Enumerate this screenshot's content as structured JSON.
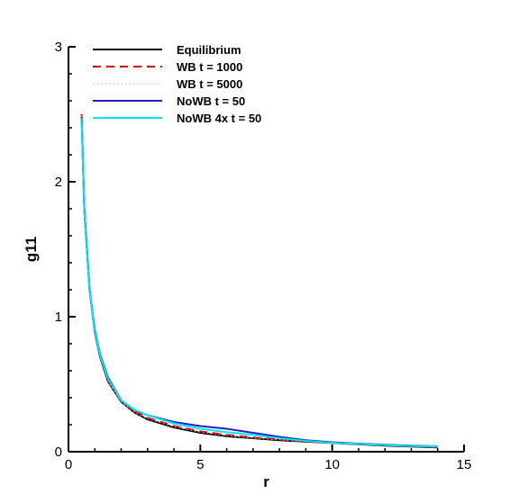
{
  "chart_data": {
    "type": "line",
    "xlabel": "r",
    "ylabel": "g11",
    "xlim": [
      0,
      15
    ],
    "ylim": [
      0,
      3
    ],
    "xticks": [
      0,
      5,
      10,
      15
    ],
    "yticks": [
      0,
      1,
      2,
      3
    ],
    "grid": false,
    "legend_position": "top-left",
    "series": [
      {
        "name": "Equilibrium",
        "color": "#000000",
        "style": "solid",
        "x": [
          0.5,
          0.6,
          0.8,
          1.0,
          1.2,
          1.5,
          2.0,
          2.5,
          3.0,
          4.0,
          5.0,
          6.0,
          7.0,
          8.0,
          9.0,
          10.0,
          11.0,
          12.0,
          13.0,
          14.0
        ],
        "y": [
          2.48,
          1.8,
          1.2,
          0.88,
          0.7,
          0.52,
          0.37,
          0.29,
          0.24,
          0.18,
          0.14,
          0.115,
          0.1,
          0.085,
          0.075,
          0.065,
          0.055,
          0.045,
          0.038,
          0.032
        ]
      },
      {
        "name": "WB t = 1000",
        "color": "#d40000",
        "style": "dashed",
        "x": [
          0.5,
          0.6,
          0.8,
          1.0,
          1.2,
          1.5,
          2.0,
          2.5,
          3.0,
          4.0,
          5.0,
          6.0,
          7.0,
          8.0,
          9.0,
          10.0,
          11.0,
          12.0,
          13.0,
          14.0
        ],
        "y": [
          2.5,
          1.82,
          1.21,
          0.89,
          0.71,
          0.53,
          0.37,
          0.3,
          0.25,
          0.19,
          0.15,
          0.125,
          0.105,
          0.09,
          0.078,
          0.066,
          0.056,
          0.047,
          0.04,
          0.034
        ]
      },
      {
        "name": "WB t = 5000",
        "color": "#f0a0a0",
        "style": "dotted",
        "x": [
          0.5,
          0.6,
          0.8,
          1.0,
          1.2,
          1.5,
          2.0,
          2.5,
          3.0,
          4.0,
          5.0,
          6.0,
          7.0,
          8.0,
          9.0,
          10.0,
          11.0,
          12.0,
          13.0,
          14.0
        ],
        "y": [
          2.49,
          1.81,
          1.2,
          0.88,
          0.7,
          0.52,
          0.37,
          0.29,
          0.245,
          0.185,
          0.145,
          0.12,
          0.1,
          0.088,
          0.076,
          0.065,
          0.055,
          0.046,
          0.039,
          0.033
        ]
      },
      {
        "name": "NoWB t = 50",
        "color": "#2020cc",
        "style": "solid",
        "x": [
          0.5,
          0.6,
          0.8,
          1.0,
          1.2,
          1.5,
          2.0,
          2.5,
          3.0,
          4.0,
          5.0,
          6.0,
          7.0,
          8.0,
          9.0,
          10.0,
          11.0,
          12.0,
          13.0,
          14.0
        ],
        "y": [
          2.47,
          1.78,
          1.2,
          0.9,
          0.72,
          0.55,
          0.38,
          0.31,
          0.27,
          0.22,
          0.19,
          0.17,
          0.14,
          0.11,
          0.085,
          0.07,
          0.06,
          0.052,
          0.045,
          0.04
        ]
      },
      {
        "name": "NoWB 4x t = 50",
        "color": "#00e5ee",
        "style": "solid",
        "x": [
          0.5,
          0.6,
          0.8,
          1.0,
          1.2,
          1.5,
          2.0,
          2.5,
          3.0,
          4.0,
          5.0,
          6.0,
          7.0,
          8.0,
          9.0,
          10.0,
          11.0,
          12.0,
          13.0,
          14.0
        ],
        "y": [
          2.47,
          1.79,
          1.2,
          0.89,
          0.71,
          0.54,
          0.38,
          0.31,
          0.27,
          0.21,
          0.17,
          0.145,
          0.125,
          0.1,
          0.08,
          0.066,
          0.057,
          0.049,
          0.043,
          0.038
        ]
      }
    ]
  }
}
